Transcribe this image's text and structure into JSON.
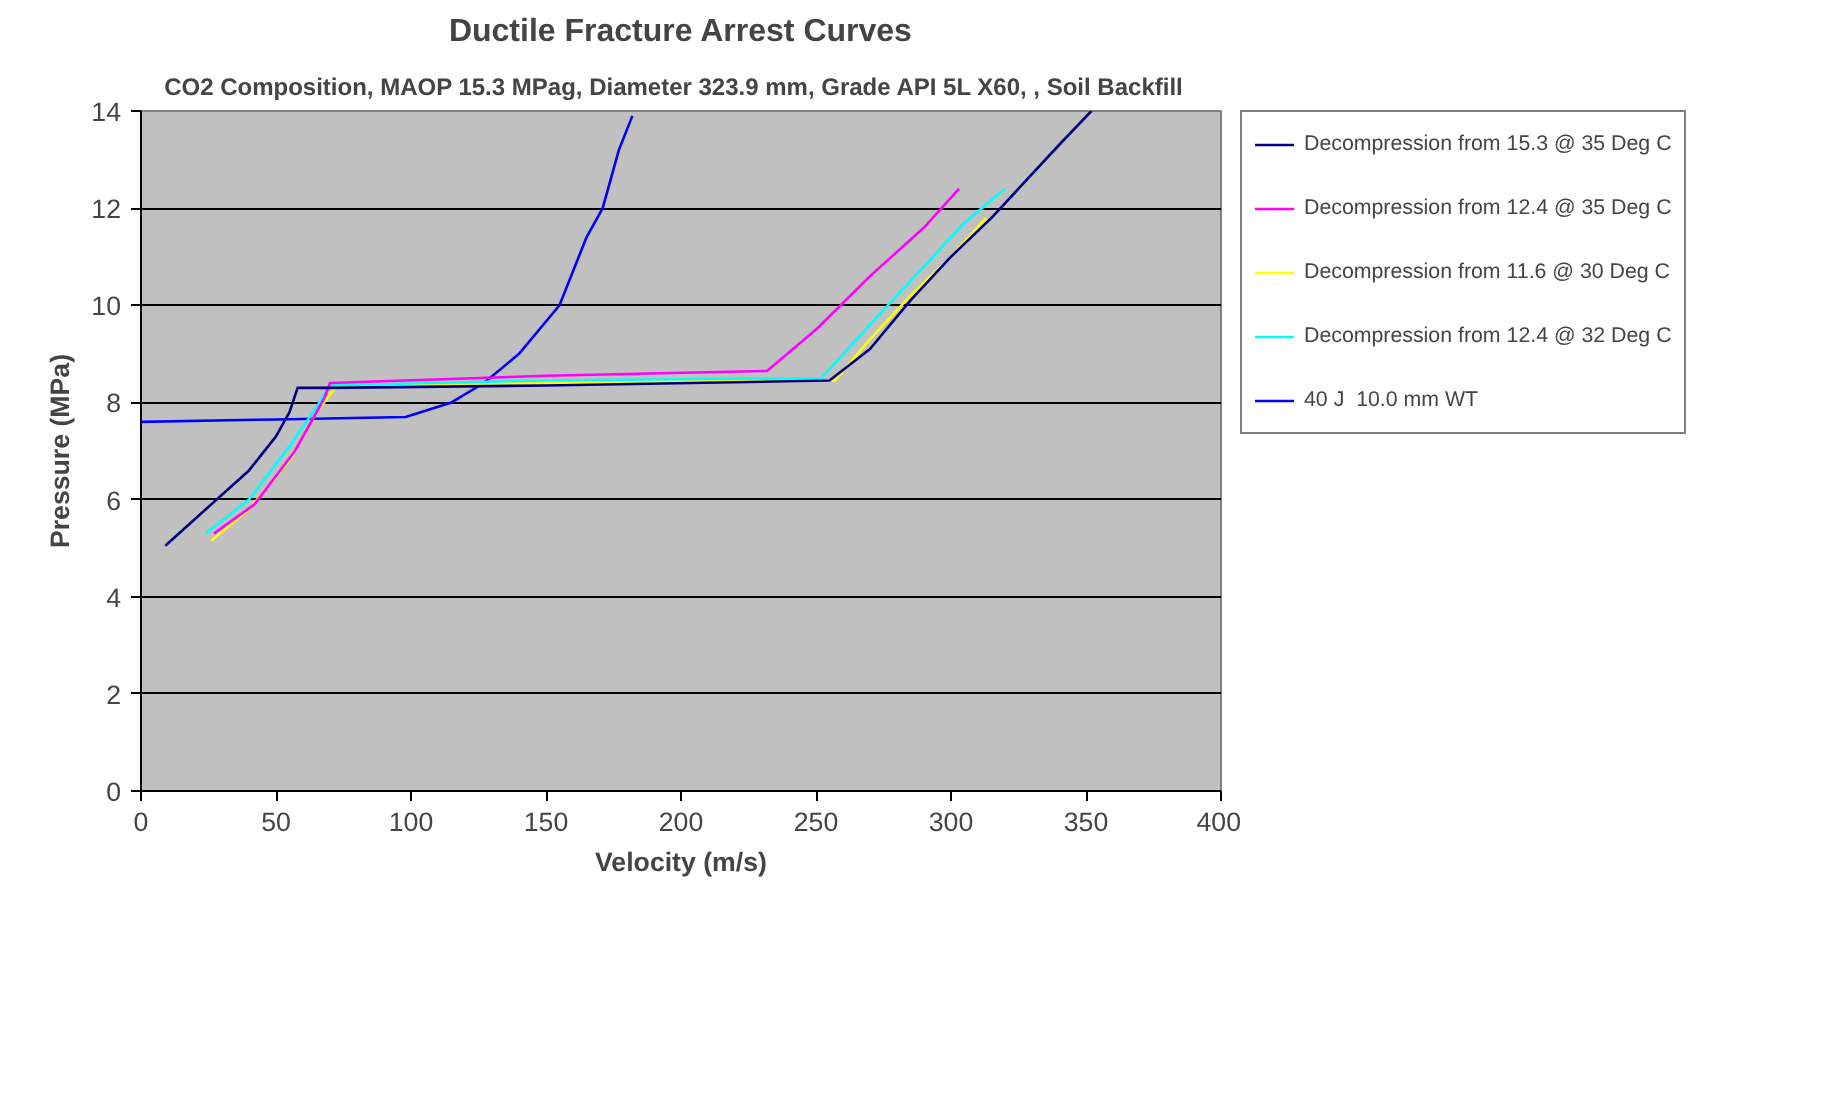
{
  "chart_data": {
    "type": "line",
    "title": "Ductile Fracture Arrest Curves",
    "subtitle": "CO2 Composition, MAOP 15.3 MPag, Diameter 323.9 mm,  Grade  API 5L X60, , Soil Backfill",
    "xlabel": "Velocity (m/s)",
    "ylabel": "Pressure (MPa)",
    "xlim": [
      0,
      400
    ],
    "ylim": [
      0,
      14
    ],
    "xticks": [
      0,
      50,
      100,
      150,
      200,
      250,
      300,
      350,
      400
    ],
    "yticks": [
      0,
      2,
      4,
      6,
      8,
      10,
      12,
      14
    ],
    "grid": "y",
    "legend": "right",
    "marker": "none",
    "line_style": "solid",
    "series": [
      {
        "name": "Decompression from 15.3 @ 35 Deg C",
        "color": "#000080",
        "x": [
          9,
          20,
          30,
          40,
          50,
          55,
          58,
          70,
          150,
          255,
          270,
          285,
          300,
          315,
          325,
          340,
          352
        ],
        "values": [
          5.05,
          5.6,
          6.1,
          6.6,
          7.3,
          7.8,
          8.3,
          8.3,
          8.35,
          8.45,
          9.1,
          10.1,
          11.0,
          11.8,
          12.4,
          13.3,
          14
        ]
      },
      {
        "name": "Decompression from 12.4 @ 35 Deg C",
        "color": "#ff00ff",
        "x": [
          27,
          42,
          57,
          68,
          70,
          150,
          232,
          250,
          270,
          290,
          303
        ],
        "values": [
          5.3,
          5.9,
          7.0,
          8.1,
          8.4,
          8.55,
          8.65,
          9.5,
          10.6,
          11.6,
          12.4
        ]
      },
      {
        "name": "Decompression from 11.6 @ 30 Deg C",
        "color": "#ffff00",
        "x": [
          26,
          40,
          55,
          65,
          72,
          150,
          257,
          270,
          285,
          300,
          313
        ],
        "values": [
          5.15,
          5.8,
          6.8,
          7.8,
          8.3,
          8.4,
          8.45,
          9.3,
          10.2,
          11.0,
          11.8
        ]
      },
      {
        "name": "Decompression from 12.4 @ 32 Deg C",
        "color": "#00ffff",
        "x": [
          24,
          40,
          55,
          65,
          70,
          150,
          252,
          270,
          290,
          305,
          320
        ],
        "values": [
          5.3,
          6.0,
          7.1,
          7.9,
          8.35,
          8.45,
          8.5,
          9.6,
          10.8,
          11.7,
          12.4
        ]
      },
      {
        "name": "40 J  10.0 mm WT",
        "color": "#0000ff",
        "x": [
          0,
          50,
          98,
          115,
          127,
          140,
          155,
          165,
          171,
          177,
          182
        ],
        "values": [
          7.6,
          7.65,
          7.7,
          8.0,
          8.4,
          9.0,
          10.0,
          11.4,
          12.0,
          13.2,
          13.9
        ]
      }
    ]
  }
}
